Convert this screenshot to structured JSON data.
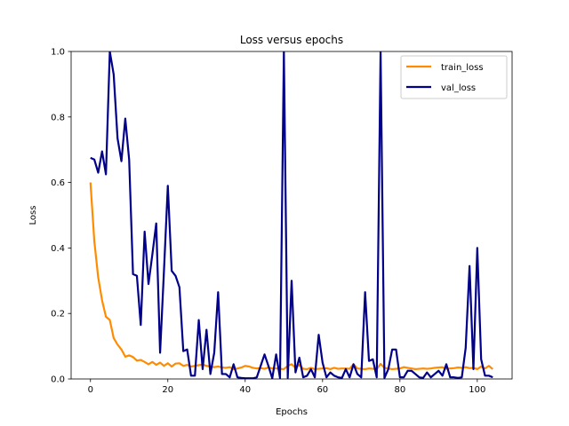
{
  "chart_data": {
    "type": "line",
    "title": "Loss versus epochs",
    "xlabel": "Epochs",
    "ylabel": "Loss",
    "xlim": [
      -5,
      109
    ],
    "ylim": [
      0,
      1
    ],
    "x_ticks": [
      0,
      20,
      40,
      60,
      80,
      100
    ],
    "x_tick_labels": [
      "0",
      "20",
      "40",
      "60",
      "80",
      "100"
    ],
    "y_ticks": [
      0.0,
      0.2,
      0.4,
      0.6,
      0.8,
      1.0
    ],
    "y_tick_labels": [
      "0.0",
      "0.2",
      "0.4",
      "0.6",
      "0.8",
      "1.0"
    ],
    "grid": false,
    "legend_position": "top-right",
    "series": [
      {
        "name": "train_loss",
        "color": "#ff8c00",
        "x": [
          0,
          1,
          2,
          3,
          4,
          5,
          6,
          7,
          8,
          9,
          10,
          11,
          12,
          13,
          14,
          15,
          16,
          17,
          18,
          19,
          20,
          21,
          22,
          23,
          24,
          25,
          26,
          27,
          28,
          29,
          30,
          31,
          32,
          33,
          34,
          35,
          36,
          37,
          38,
          39,
          40,
          41,
          42,
          43,
          44,
          45,
          46,
          47,
          48,
          49,
          50,
          51,
          52,
          53,
          54,
          55,
          56,
          57,
          58,
          59,
          60,
          61,
          62,
          63,
          64,
          65,
          66,
          67,
          68,
          69,
          70,
          71,
          72,
          73,
          74,
          75,
          76,
          77,
          78,
          79,
          80,
          81,
          82,
          83,
          84,
          85,
          86,
          87,
          88,
          89,
          90,
          91,
          92,
          93,
          94,
          95,
          96,
          97,
          98,
          99,
          100,
          101,
          102,
          103,
          104
        ],
        "y": [
          0.6,
          0.42,
          0.31,
          0.24,
          0.19,
          0.18,
          0.125,
          0.105,
          0.09,
          0.068,
          0.072,
          0.067,
          0.056,
          0.058,
          0.052,
          0.045,
          0.052,
          0.043,
          0.05,
          0.04,
          0.048,
          0.038,
          0.047,
          0.048,
          0.04,
          0.043,
          0.038,
          0.04,
          0.042,
          0.044,
          0.04,
          0.038,
          0.036,
          0.038,
          0.035,
          0.034,
          0.036,
          0.03,
          0.032,
          0.035,
          0.04,
          0.038,
          0.034,
          0.032,
          0.033,
          0.031,
          0.035,
          0.032,
          0.032,
          0.031,
          0.03,
          0.04,
          0.045,
          0.034,
          0.043,
          0.031,
          0.03,
          0.034,
          0.03,
          0.031,
          0.032,
          0.033,
          0.03,
          0.034,
          0.031,
          0.032,
          0.032,
          0.031,
          0.045,
          0.032,
          0.031,
          0.03,
          0.032,
          0.031,
          0.03,
          0.046,
          0.034,
          0.032,
          0.03,
          0.031,
          0.032,
          0.036,
          0.034,
          0.032,
          0.03,
          0.031,
          0.032,
          0.031,
          0.032,
          0.034,
          0.035,
          0.036,
          0.031,
          0.032,
          0.033,
          0.035,
          0.034,
          0.036,
          0.033,
          0.034,
          0.03,
          0.038,
          0.032,
          0.04,
          0.03
        ]
      },
      {
        "name": "val_loss",
        "color": "#00008b",
        "x": [
          0,
          1,
          2,
          3,
          4,
          5,
          6,
          7,
          8,
          9,
          10,
          11,
          12,
          13,
          14,
          15,
          16,
          17,
          18,
          19,
          20,
          21,
          22,
          23,
          24,
          25,
          26,
          27,
          28,
          29,
          30,
          31,
          32,
          33,
          34,
          35,
          36,
          37,
          38,
          39,
          40,
          41,
          42,
          43,
          44,
          45,
          46,
          47,
          48,
          49,
          50,
          51,
          52,
          53,
          54,
          55,
          56,
          57,
          58,
          59,
          60,
          61,
          62,
          63,
          64,
          65,
          66,
          67,
          68,
          69,
          70,
          71,
          72,
          73,
          74,
          75,
          76,
          77,
          78,
          79,
          80,
          81,
          82,
          83,
          84,
          85,
          86,
          87,
          88,
          89,
          90,
          91,
          92,
          93,
          94,
          95,
          96,
          97,
          98,
          99,
          100,
          101,
          102,
          103,
          104
        ],
        "y": [
          0.675,
          0.67,
          0.63,
          0.695,
          0.625,
          1.0,
          0.93,
          0.735,
          0.665,
          0.795,
          0.67,
          0.32,
          0.315,
          0.165,
          0.45,
          0.29,
          0.38,
          0.475,
          0.08,
          0.33,
          0.59,
          0.33,
          0.315,
          0.28,
          0.085,
          0.09,
          0.01,
          0.01,
          0.18,
          0.03,
          0.15,
          0.015,
          0.08,
          0.265,
          0.015,
          0.015,
          0.005,
          0.045,
          0.005,
          0.003,
          0.002,
          0.002,
          0.002,
          0.005,
          0.04,
          0.075,
          0.04,
          0.002,
          0.075,
          0.003,
          1.0,
          0.003,
          0.3,
          0.02,
          0.065,
          0.005,
          0.01,
          0.03,
          0.005,
          0.135,
          0.05,
          0.005,
          0.02,
          0.01,
          0.005,
          0.003,
          0.03,
          0.005,
          0.045,
          0.015,
          0.005,
          0.265,
          0.055,
          0.06,
          0.005,
          1.0,
          0.003,
          0.03,
          0.09,
          0.09,
          0.005,
          0.005,
          0.025,
          0.025,
          0.015,
          0.005,
          0.003,
          0.02,
          0.005,
          0.015,
          0.025,
          0.01,
          0.045,
          0.005,
          0.005,
          0.003,
          0.005,
          0.095,
          0.345,
          0.03,
          0.4,
          0.06,
          0.01,
          0.01,
          0.005
        ]
      }
    ]
  }
}
